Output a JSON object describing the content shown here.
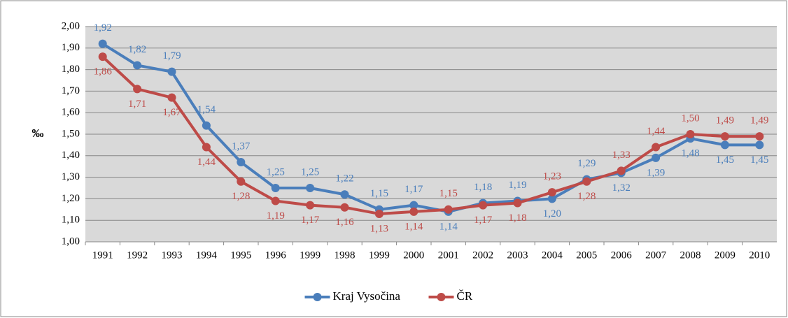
{
  "chart_data": {
    "type": "line",
    "ylabel": "‰",
    "categories": [
      "1991",
      "1992",
      "1993",
      "1994",
      "1995",
      "1996",
      "1999",
      "1998",
      "1999",
      "2000",
      "2001",
      "2002",
      "2003",
      "2004",
      "2005",
      "2006",
      "2007",
      "2008",
      "2009",
      "2010"
    ],
    "series": [
      {
        "name": "Kraj Vysočina",
        "color": "#4a7ebb",
        "values": [
          1.92,
          1.82,
          1.79,
          1.54,
          1.37,
          1.25,
          1.25,
          1.22,
          1.15,
          1.17,
          1.14,
          1.18,
          1.19,
          1.2,
          1.29,
          1.32,
          1.39,
          1.48,
          1.45,
          1.45
        ],
        "value_labels": [
          "1,92",
          "1,82",
          "1,79",
          "1,54",
          "1,37",
          "1,25",
          "1,25",
          "1,22",
          "1,15",
          "1,17",
          "1,14",
          "1,18",
          "1,19",
          "1,20",
          "1,29",
          "1,32",
          "1,39",
          "1,48",
          "1,45",
          "1,45"
        ]
      },
      {
        "name": "ČR",
        "color": "#be4b48",
        "values": [
          1.86,
          1.71,
          1.67,
          1.44,
          1.28,
          1.19,
          1.17,
          1.16,
          1.13,
          1.14,
          1.15,
          1.17,
          1.18,
          1.23,
          1.28,
          1.33,
          1.44,
          1.5,
          1.49,
          1.49
        ],
        "value_labels": [
          "1,86",
          "1,71",
          "1,67",
          "1,44",
          "1,28",
          "1,19",
          "1,17",
          "1,16",
          "1,13",
          "1,14",
          "1,15",
          "1,17",
          "1,18",
          "1,23",
          "1,28",
          "1,33",
          "1,44",
          "1,50",
          "1,49",
          "1,49"
        ]
      }
    ],
    "ylim": [
      1.0,
      2.0
    ],
    "yticks": [
      {
        "value": 1.0,
        "label": "1,00"
      },
      {
        "value": 1.1,
        "label": "1,10"
      },
      {
        "value": 1.2,
        "label": "1,20"
      },
      {
        "value": 1.3,
        "label": "1,30"
      },
      {
        "value": 1.4,
        "label": "1,40"
      },
      {
        "value": 1.5,
        "label": "1,50"
      },
      {
        "value": 1.6,
        "label": "1,60"
      },
      {
        "value": 1.7,
        "label": "1,70"
      },
      {
        "value": 1.8,
        "label": "1,80"
      },
      {
        "value": 1.9,
        "label": "1,90"
      },
      {
        "value": 2.0,
        "label": "2,00"
      }
    ],
    "grid": true,
    "legend": "bottom"
  }
}
